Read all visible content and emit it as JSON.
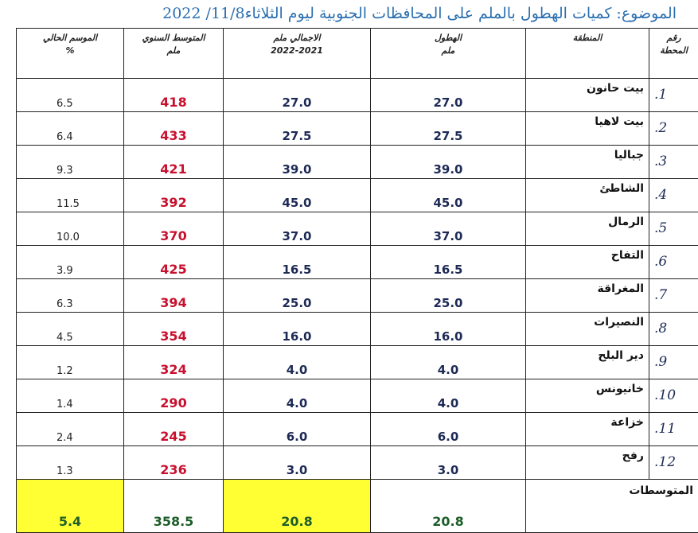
{
  "header": {
    "title": "الموضوع: كميات الهطول بالملم على المحافظات الجنوبية ليوم الثلاثاء11/8/ 2022"
  },
  "table": {
    "columns": [
      [
        "رقم",
        "المحطة"
      ],
      [
        "المنطقة"
      ],
      [
        "الهطول",
        "ملم"
      ],
      [
        "الاجمالي ملم",
        "2022-2021"
      ],
      [
        "المتوسط السنوي",
        "ملم"
      ],
      [
        "الموسم الحالي",
        "%"
      ]
    ],
    "rows": [
      [
        "1.",
        "بيت حانون",
        "27.0",
        "27.0",
        "418",
        "6.5"
      ],
      [
        "2.",
        "بيت لاهيا",
        "27.5",
        "27.5",
        "433",
        "6.4"
      ],
      [
        "3.",
        "جباليا",
        "39.0",
        "39.0",
        "421",
        "9.3"
      ],
      [
        "4.",
        "الشاطئ",
        "45.0",
        "45.0",
        "392",
        "11.5"
      ],
      [
        "5.",
        "الرمال",
        "37.0",
        "37.0",
        "370",
        "10.0"
      ],
      [
        "6.",
        "التفاح",
        "16.5",
        "16.5",
        "425",
        "3.9"
      ],
      [
        "7.",
        "المغراقة",
        "25.0",
        "25.0",
        "394",
        "6.3"
      ],
      [
        "8.",
        "النصيرات",
        "16.0",
        "16.0",
        "354",
        "4.5"
      ],
      [
        "9.",
        "دير البلح",
        "4.0",
        "4.0",
        "324",
        "1.2"
      ],
      [
        "10.",
        "خانيونس",
        "4.0",
        "4.0",
        "290",
        "1.4"
      ],
      [
        "11.",
        "خزاعة",
        "6.0",
        "6.0",
        "245",
        "2.4"
      ],
      [
        "12.",
        "رفح",
        "3.0",
        "3.0",
        "236",
        "1.3"
      ]
    ],
    "footer": {
      "label": "المتوسطات",
      "values": [
        "20.8",
        "20.8",
        "358.5",
        "5.4"
      ]
    }
  }
}
